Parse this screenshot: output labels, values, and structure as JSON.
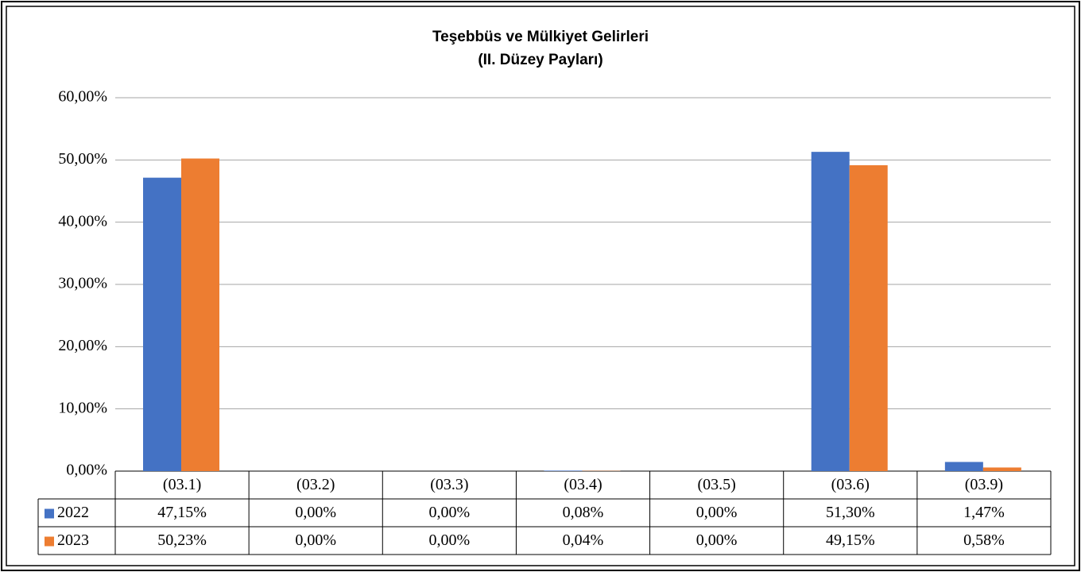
{
  "chart_data": {
    "type": "bar",
    "title": "Teşebbüs ve Mülkiyet Gelirleri",
    "subtitle": "(II. Düzey Payları)",
    "categories": [
      "(03.1)",
      "(03.2)",
      "(03.3)",
      "(03.4)",
      "(03.5)",
      "(03.6)",
      "(03.9)"
    ],
    "series": [
      {
        "name": "2022",
        "color": "#4472c4",
        "values": [
          47.15,
          0,
          0,
          0.08,
          0,
          51.3,
          1.47
        ],
        "value_labels": [
          "47,15%",
          "0,00%",
          "0,00%",
          "0,08%",
          "0,00%",
          "51,30%",
          "1,47%"
        ]
      },
      {
        "name": "2023",
        "color": "#ed7d31",
        "values": [
          50.23,
          0,
          0,
          0.04,
          0,
          49.15,
          0.58
        ],
        "value_labels": [
          "50,23%",
          "0,00%",
          "0,00%",
          "0,04%",
          "0,00%",
          "49,15%",
          "0,58%"
        ]
      }
    ],
    "ylim": [
      0,
      60
    ],
    "yticks": [
      {
        "value": 0,
        "label": "0,00%"
      },
      {
        "value": 10,
        "label": "10,00%"
      },
      {
        "value": 20,
        "label": "20,00%"
      },
      {
        "value": 30,
        "label": "30,00%"
      },
      {
        "value": 40,
        "label": "40,00%"
      },
      {
        "value": 50,
        "label": "50,00%"
      },
      {
        "value": 60,
        "label": "60,00%"
      }
    ],
    "grid": true
  }
}
